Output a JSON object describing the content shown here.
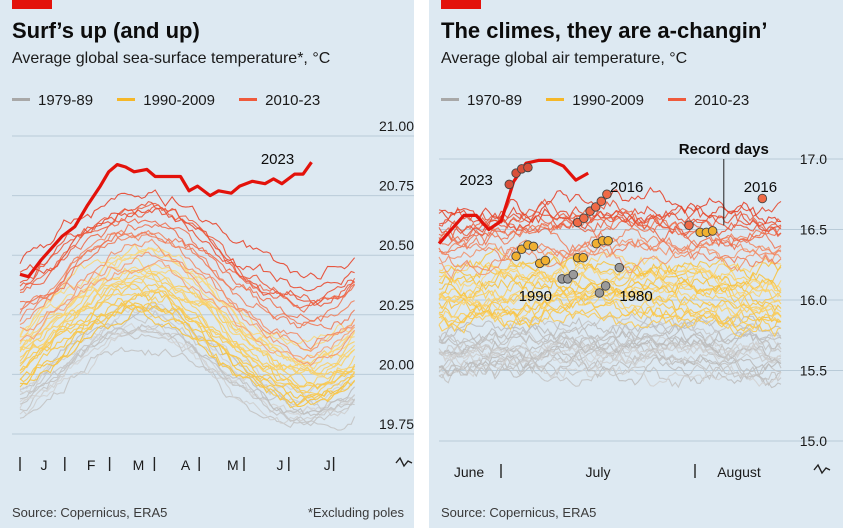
{
  "chart_data": [
    {
      "type": "line",
      "title": "Surf’s up (and up)",
      "subtitle": "Average global sea-surface temperature*, °C",
      "legend": [
        {
          "label": "1979-89",
          "color": "#a8a8a8"
        },
        {
          "label": "1990-2009",
          "color": "#f5b728"
        },
        {
          "label": "2010-23",
          "color": "#ef5a3c"
        }
      ],
      "y_axis": {
        "ticks": [
          "21.00",
          "20.75",
          "20.50",
          "20.25",
          "20.00",
          "19.75"
        ],
        "ylim": [
          19.7,
          21.0
        ],
        "side": "right"
      },
      "x_axis": {
        "ticks": [
          "J",
          "F",
          "M",
          "A",
          "M",
          "J",
          "J"
        ],
        "months": 8
      },
      "series": [
        {
          "name": "2023",
          "color": "#e3120b",
          "x": [
            0,
            0.2,
            0.5,
            0.8,
            1.0,
            1.3,
            1.6,
            1.9,
            2.1,
            2.3,
            2.5,
            2.7,
            3.0,
            3.2,
            3.5,
            3.8,
            4.0,
            4.2,
            4.5,
            4.7,
            5.0,
            5.2,
            5.5,
            5.8,
            6.0,
            6.2,
            6.5,
            6.7,
            6.9
          ],
          "values": [
            20.42,
            20.41,
            20.48,
            20.54,
            20.58,
            20.62,
            20.71,
            20.79,
            20.85,
            20.88,
            20.87,
            20.85,
            20.86,
            20.83,
            20.83,
            20.83,
            20.77,
            20.79,
            20.75,
            20.77,
            20.76,
            20.79,
            20.81,
            20.8,
            20.82,
            20.8,
            20.84,
            20.84,
            20.89
          ]
        }
      ],
      "labels": [
        {
          "text": "2023",
          "x": 5.7,
          "y": 20.89
        }
      ],
      "note": "*Excluding poles",
      "source": "Source: Copernicus, ERA5"
    },
    {
      "type": "line",
      "title": "The climes, they are a-changin’",
      "subtitle": "Average global air temperature, °C",
      "legend": [
        {
          "label": "1970-89",
          "color": "#a8a8a8"
        },
        {
          "label": "1990-2009",
          "color": "#f5b728"
        },
        {
          "label": "2010-23",
          "color": "#ef5a3c"
        }
      ],
      "y_axis": {
        "ticks": [
          "17.0",
          "16.5",
          "16.0",
          "15.5",
          "15.0"
        ],
        "ylim": [
          15.0,
          17.1
        ],
        "side": "right"
      },
      "x_axis": {
        "ticks": [
          "June",
          "July",
          "August"
        ]
      },
      "series": [
        {
          "name": "2023",
          "color": "#e3120b",
          "x": [
            0,
            2,
            4,
            6,
            8,
            10,
            12,
            14,
            16,
            18,
            20,
            22,
            24
          ],
          "values": [
            16.4,
            16.5,
            16.6,
            16.6,
            16.5,
            16.56,
            16.84,
            16.97,
            16.99,
            16.99,
            16.95,
            16.85,
            16.9
          ]
        }
      ],
      "labels": [
        {
          "text": "2023",
          "x": 3.3,
          "y": 16.85
        },
        {
          "text": "2016",
          "x": 27.5,
          "y": 16.8
        },
        {
          "text": "1990",
          "x": 12.8,
          "y": 16.03
        },
        {
          "text": "1980",
          "x": 29.0,
          "y": 16.03
        },
        {
          "text": "2016",
          "x": 49.0,
          "y": 16.8
        },
        {
          "text": "Record days",
          "x": 45.8,
          "y": 17.07
        }
      ],
      "record_days": [
        {
          "x": 11.3,
          "y": 16.82,
          "color": "#d9503a"
        },
        {
          "x": 12.4,
          "y": 16.9,
          "color": "#d9503a"
        },
        {
          "x": 13.3,
          "y": 16.93,
          "color": "#d9503a"
        },
        {
          "x": 14.3,
          "y": 16.94,
          "color": "#d9503a"
        },
        {
          "x": 22.3,
          "y": 16.55,
          "color": "#ef6a47"
        },
        {
          "x": 23.3,
          "y": 16.58,
          "color": "#ef6a47"
        },
        {
          "x": 24.3,
          "y": 16.63,
          "color": "#ef6a47"
        },
        {
          "x": 25.2,
          "y": 16.66,
          "color": "#ef6a47"
        },
        {
          "x": 26.1,
          "y": 16.7,
          "color": "#ef6a47"
        },
        {
          "x": 27.0,
          "y": 16.75,
          "color": "#ef6a47"
        },
        {
          "x": 12.4,
          "y": 16.31,
          "color": "#f0b030"
        },
        {
          "x": 13.3,
          "y": 16.36,
          "color": "#f0b030"
        },
        {
          "x": 14.3,
          "y": 16.39,
          "color": "#f0b030"
        },
        {
          "x": 15.2,
          "y": 16.38,
          "color": "#f0b030"
        },
        {
          "x": 16.2,
          "y": 16.26,
          "color": "#f0b030"
        },
        {
          "x": 17.1,
          "y": 16.28,
          "color": "#f0b030"
        },
        {
          "x": 22.3,
          "y": 16.3,
          "color": "#f0b030"
        },
        {
          "x": 23.2,
          "y": 16.3,
          "color": "#f0b030"
        },
        {
          "x": 25.3,
          "y": 16.4,
          "color": "#f0b030"
        },
        {
          "x": 26.3,
          "y": 16.42,
          "color": "#f0b030"
        },
        {
          "x": 27.2,
          "y": 16.42,
          "color": "#f0b030"
        },
        {
          "x": 19.8,
          "y": 16.15,
          "color": "#9a9a9a"
        },
        {
          "x": 20.7,
          "y": 16.15,
          "color": "#9a9a9a"
        },
        {
          "x": 21.6,
          "y": 16.18,
          "color": "#9a9a9a"
        },
        {
          "x": 25.8,
          "y": 16.05,
          "color": "#9a9a9a"
        },
        {
          "x": 26.8,
          "y": 16.1,
          "color": "#9a9a9a"
        },
        {
          "x": 29.0,
          "y": 16.23,
          "color": "#9a9a9a"
        },
        {
          "x": 40.2,
          "y": 16.53,
          "color": "#ef6a47"
        },
        {
          "x": 42.0,
          "y": 16.48,
          "color": "#f0b030"
        },
        {
          "x": 43.0,
          "y": 16.48,
          "color": "#f0b030"
        },
        {
          "x": 44.0,
          "y": 16.49,
          "color": "#f0b030"
        },
        {
          "x": 52.0,
          "y": 16.72,
          "color": "#ef6a47"
        }
      ],
      "source": "Source: Copernicus, ERA5"
    }
  ]
}
